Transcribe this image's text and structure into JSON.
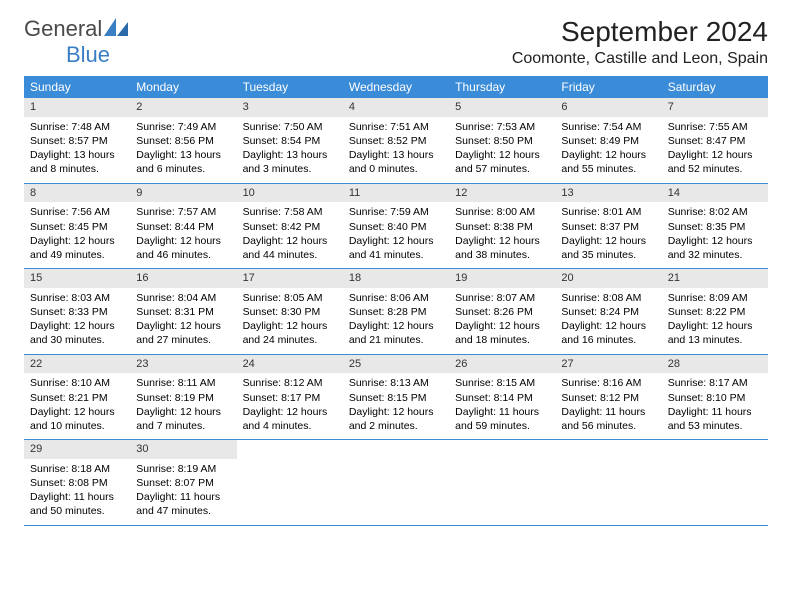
{
  "logo": {
    "text1": "General",
    "text2": "Blue"
  },
  "title": "September 2024",
  "location": "Coomonte, Castille and Leon, Spain",
  "colors": {
    "header_bg": "#3a8bd8",
    "daynum_bg": "#e8e8e8",
    "row_border": "#3a8bd8",
    "logo_blue": "#3a7fc4"
  },
  "weekdays": [
    "Sunday",
    "Monday",
    "Tuesday",
    "Wednesday",
    "Thursday",
    "Friday",
    "Saturday"
  ],
  "weeks": [
    [
      {
        "n": "1",
        "sr": "Sunrise: 7:48 AM",
        "ss": "Sunset: 8:57 PM",
        "dl": "Daylight: 13 hours and 8 minutes."
      },
      {
        "n": "2",
        "sr": "Sunrise: 7:49 AM",
        "ss": "Sunset: 8:56 PM",
        "dl": "Daylight: 13 hours and 6 minutes."
      },
      {
        "n": "3",
        "sr": "Sunrise: 7:50 AM",
        "ss": "Sunset: 8:54 PM",
        "dl": "Daylight: 13 hours and 3 minutes."
      },
      {
        "n": "4",
        "sr": "Sunrise: 7:51 AM",
        "ss": "Sunset: 8:52 PM",
        "dl": "Daylight: 13 hours and 0 minutes."
      },
      {
        "n": "5",
        "sr": "Sunrise: 7:53 AM",
        "ss": "Sunset: 8:50 PM",
        "dl": "Daylight: 12 hours and 57 minutes."
      },
      {
        "n": "6",
        "sr": "Sunrise: 7:54 AM",
        "ss": "Sunset: 8:49 PM",
        "dl": "Daylight: 12 hours and 55 minutes."
      },
      {
        "n": "7",
        "sr": "Sunrise: 7:55 AM",
        "ss": "Sunset: 8:47 PM",
        "dl": "Daylight: 12 hours and 52 minutes."
      }
    ],
    [
      {
        "n": "8",
        "sr": "Sunrise: 7:56 AM",
        "ss": "Sunset: 8:45 PM",
        "dl": "Daylight: 12 hours and 49 minutes."
      },
      {
        "n": "9",
        "sr": "Sunrise: 7:57 AM",
        "ss": "Sunset: 8:44 PM",
        "dl": "Daylight: 12 hours and 46 minutes."
      },
      {
        "n": "10",
        "sr": "Sunrise: 7:58 AM",
        "ss": "Sunset: 8:42 PM",
        "dl": "Daylight: 12 hours and 44 minutes."
      },
      {
        "n": "11",
        "sr": "Sunrise: 7:59 AM",
        "ss": "Sunset: 8:40 PM",
        "dl": "Daylight: 12 hours and 41 minutes."
      },
      {
        "n": "12",
        "sr": "Sunrise: 8:00 AM",
        "ss": "Sunset: 8:38 PM",
        "dl": "Daylight: 12 hours and 38 minutes."
      },
      {
        "n": "13",
        "sr": "Sunrise: 8:01 AM",
        "ss": "Sunset: 8:37 PM",
        "dl": "Daylight: 12 hours and 35 minutes."
      },
      {
        "n": "14",
        "sr": "Sunrise: 8:02 AM",
        "ss": "Sunset: 8:35 PM",
        "dl": "Daylight: 12 hours and 32 minutes."
      }
    ],
    [
      {
        "n": "15",
        "sr": "Sunrise: 8:03 AM",
        "ss": "Sunset: 8:33 PM",
        "dl": "Daylight: 12 hours and 30 minutes."
      },
      {
        "n": "16",
        "sr": "Sunrise: 8:04 AM",
        "ss": "Sunset: 8:31 PM",
        "dl": "Daylight: 12 hours and 27 minutes."
      },
      {
        "n": "17",
        "sr": "Sunrise: 8:05 AM",
        "ss": "Sunset: 8:30 PM",
        "dl": "Daylight: 12 hours and 24 minutes."
      },
      {
        "n": "18",
        "sr": "Sunrise: 8:06 AM",
        "ss": "Sunset: 8:28 PM",
        "dl": "Daylight: 12 hours and 21 minutes."
      },
      {
        "n": "19",
        "sr": "Sunrise: 8:07 AM",
        "ss": "Sunset: 8:26 PM",
        "dl": "Daylight: 12 hours and 18 minutes."
      },
      {
        "n": "20",
        "sr": "Sunrise: 8:08 AM",
        "ss": "Sunset: 8:24 PM",
        "dl": "Daylight: 12 hours and 16 minutes."
      },
      {
        "n": "21",
        "sr": "Sunrise: 8:09 AM",
        "ss": "Sunset: 8:22 PM",
        "dl": "Daylight: 12 hours and 13 minutes."
      }
    ],
    [
      {
        "n": "22",
        "sr": "Sunrise: 8:10 AM",
        "ss": "Sunset: 8:21 PM",
        "dl": "Daylight: 12 hours and 10 minutes."
      },
      {
        "n": "23",
        "sr": "Sunrise: 8:11 AM",
        "ss": "Sunset: 8:19 PM",
        "dl": "Daylight: 12 hours and 7 minutes."
      },
      {
        "n": "24",
        "sr": "Sunrise: 8:12 AM",
        "ss": "Sunset: 8:17 PM",
        "dl": "Daylight: 12 hours and 4 minutes."
      },
      {
        "n": "25",
        "sr": "Sunrise: 8:13 AM",
        "ss": "Sunset: 8:15 PM",
        "dl": "Daylight: 12 hours and 2 minutes."
      },
      {
        "n": "26",
        "sr": "Sunrise: 8:15 AM",
        "ss": "Sunset: 8:14 PM",
        "dl": "Daylight: 11 hours and 59 minutes."
      },
      {
        "n": "27",
        "sr": "Sunrise: 8:16 AM",
        "ss": "Sunset: 8:12 PM",
        "dl": "Daylight: 11 hours and 56 minutes."
      },
      {
        "n": "28",
        "sr": "Sunrise: 8:17 AM",
        "ss": "Sunset: 8:10 PM",
        "dl": "Daylight: 11 hours and 53 minutes."
      }
    ],
    [
      {
        "n": "29",
        "sr": "Sunrise: 8:18 AM",
        "ss": "Sunset: 8:08 PM",
        "dl": "Daylight: 11 hours and 50 minutes."
      },
      {
        "n": "30",
        "sr": "Sunrise: 8:19 AM",
        "ss": "Sunset: 8:07 PM",
        "dl": "Daylight: 11 hours and 47 minutes."
      },
      null,
      null,
      null,
      null,
      null
    ]
  ]
}
